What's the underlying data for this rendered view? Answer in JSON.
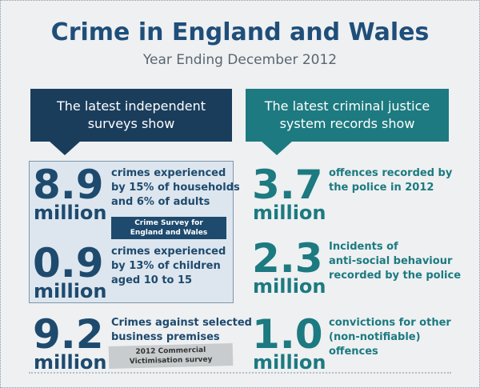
{
  "header": {
    "title": "Crime in England and Wales",
    "subtitle": "Year Ending December 2012"
  },
  "left": {
    "heading": [
      "The latest independent",
      "surveys show"
    ],
    "stats": [
      {
        "figure": "8.9",
        "unit": "million",
        "lines": [
          "crimes experienced",
          "by 15% of households",
          "and 6% of adults"
        ]
      },
      {
        "figure": "0.9",
        "unit": "million",
        "lines": [
          "crimes experienced",
          "by 13% of children",
          "aged 10 to 15"
        ]
      },
      {
        "figure": "9.2",
        "unit": "million",
        "lines": [
          "Crimes against selected",
          "business premises"
        ]
      }
    ],
    "badge": [
      "Crime Survey for",
      "England and Wales"
    ],
    "badge2": "2012 Commercial Victimisation survey"
  },
  "right": {
    "heading": [
      "The latest criminal justice",
      "system records show"
    ],
    "stats": [
      {
        "figure": "3.7",
        "unit": "million",
        "lines": [
          "offences recorded by",
          "the police in 2012"
        ]
      },
      {
        "figure": "2.3",
        "unit": "million",
        "lines": [
          "Incidents of",
          "anti-social behaviour",
          "recorded by the police"
        ]
      },
      {
        "figure": "1.0",
        "unit": "million",
        "lines": [
          "convictions for other",
          "(non-notifiable)",
          "offences"
        ]
      }
    ]
  }
}
